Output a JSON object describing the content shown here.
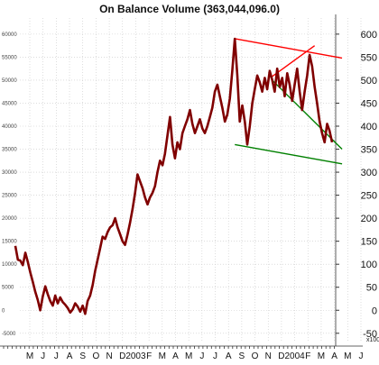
{
  "chart_data": {
    "type": "line",
    "title": "On Balance Volume (363,044,096.0)",
    "series": [
      {
        "values": [
          14000,
          11000,
          10800,
          9800,
          12500,
          10500,
          8200,
          6200,
          4000,
          2200,
          0,
          3000,
          5200,
          3500,
          2000,
          1000,
          3200,
          1500,
          2800,
          1800,
          1200,
          500,
          -500,
          200,
          1500,
          800,
          -300,
          1000,
          -800,
          2000,
          3200,
          5500,
          8500,
          11000,
          13500,
          16000,
          15500,
          17000,
          18000,
          18500,
          20000,
          18000,
          16500,
          15000,
          14200,
          16500,
          19000,
          22000,
          25500,
          29500,
          28000,
          26500,
          24500,
          23000,
          24500,
          25500,
          27000,
          30000,
          32500,
          31500,
          34000,
          38000,
          42000,
          36000,
          33000,
          36500,
          35000,
          38500,
          40000,
          41500,
          43500,
          40500,
          38500,
          40000,
          41500,
          39500,
          38500,
          40000,
          42000,
          44000,
          47500,
          49000,
          46500,
          44000,
          41000,
          42500,
          46000,
          52000,
          59000,
          51000,
          41000,
          44500,
          41000,
          36000,
          40000,
          45000,
          48000,
          51000,
          49500,
          47500,
          50500,
          48000,
          52000,
          50000,
          47500,
          52500,
          48500,
          50500,
          46500,
          51500,
          49000,
          45500,
          49000,
          52500,
          47500,
          43500,
          47500,
          51000,
          55500,
          53000,
          48500,
          45000,
          41000,
          38500,
          36500,
          40500,
          39000,
          36500
        ]
      }
    ],
    "y_left": {
      "ticks": [
        -5000,
        0,
        5000,
        10000,
        15000,
        20000,
        25000,
        30000,
        35000,
        40000,
        45000,
        50000,
        55000,
        60000
      ],
      "tick_labels": [
        "-5000",
        "0",
        "5000",
        "10000",
        "15000",
        "20000",
        "25000",
        "30000",
        "35000",
        "40000",
        "45000",
        "50000",
        "55000",
        "60000"
      ]
    },
    "y_right": {
      "ticks": [
        -50,
        0,
        50,
        100,
        150,
        200,
        250,
        300,
        350,
        400,
        450,
        500,
        550,
        600
      ],
      "tick_labels": [
        "-50",
        "0",
        "50",
        "100",
        "150",
        "200",
        "250",
        "300",
        "350",
        "400",
        "450",
        "500",
        "550",
        "600"
      ],
      "unit": "x1000"
    },
    "ylim": [
      -7000,
      63500
    ],
    "x_labels": [
      "M",
      "J",
      "J",
      "A",
      "S",
      "O",
      "N",
      "D",
      "2003",
      "F",
      "M",
      "A",
      "M",
      "J",
      "J",
      "A",
      "S",
      "O",
      "N",
      "D",
      "2004",
      "F",
      "M",
      "A",
      "M",
      "J"
    ],
    "trendlines": [
      {
        "color": "#ff0000",
        "from": [
          88,
          59000
        ],
        "to": [
          131,
          54800
        ]
      },
      {
        "color": "#ff0000",
        "from": [
          103,
          50800
        ],
        "to": [
          120,
          57500
        ]
      },
      {
        "color": "#008000",
        "from": [
          103,
          50000
        ],
        "to": [
          131,
          35000
        ]
      },
      {
        "color": "#008000",
        "from": [
          88,
          36000
        ],
        "to": [
          131,
          31800
        ]
      }
    ],
    "line_color": "#800000",
    "grid": true
  }
}
